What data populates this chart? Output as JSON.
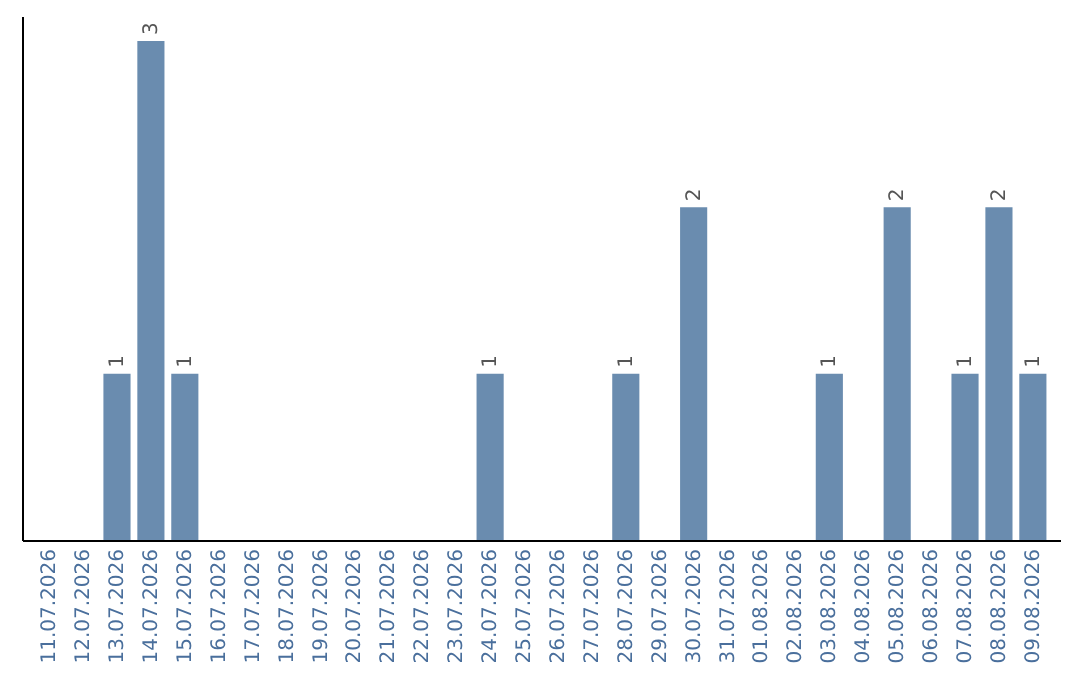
{
  "chart_data": {
    "type": "bar",
    "categories": [
      "11.07.2026",
      "12.07.2026",
      "13.07.2026",
      "14.07.2026",
      "15.07.2026",
      "16.07.2026",
      "17.07.2026",
      "18.07.2026",
      "19.07.2026",
      "20.07.2026",
      "21.07.2026",
      "22.07.2026",
      "23.07.2026",
      "24.07.2026",
      "25.07.2026",
      "26.07.2026",
      "27.07.2026",
      "28.07.2026",
      "29.07.2026",
      "30.07.2026",
      "31.07.2026",
      "01.08.2026",
      "02.08.2026",
      "03.08.2026",
      "04.08.2026",
      "05.08.2026",
      "06.08.2026",
      "07.08.2026",
      "08.08.2026",
      "09.08.2026"
    ],
    "values": [
      0,
      0,
      1,
      3,
      1,
      0,
      0,
      0,
      0,
      0,
      0,
      0,
      0,
      1,
      0,
      0,
      0,
      1,
      0,
      2,
      0,
      0,
      0,
      1,
      0,
      2,
      0,
      1,
      2,
      1
    ],
    "value_labels": [
      null,
      null,
      "1",
      "3",
      "1",
      null,
      null,
      null,
      null,
      null,
      null,
      null,
      null,
      "1",
      null,
      null,
      null,
      "1",
      null,
      "2",
      null,
      null,
      null,
      "1",
      null,
      "2",
      null,
      "1",
      "2",
      "1"
    ],
    "color": "#6a8caf",
    "ylim": [
      0,
      3.15
    ],
    "tick_labels": "x",
    "grid": false
  }
}
